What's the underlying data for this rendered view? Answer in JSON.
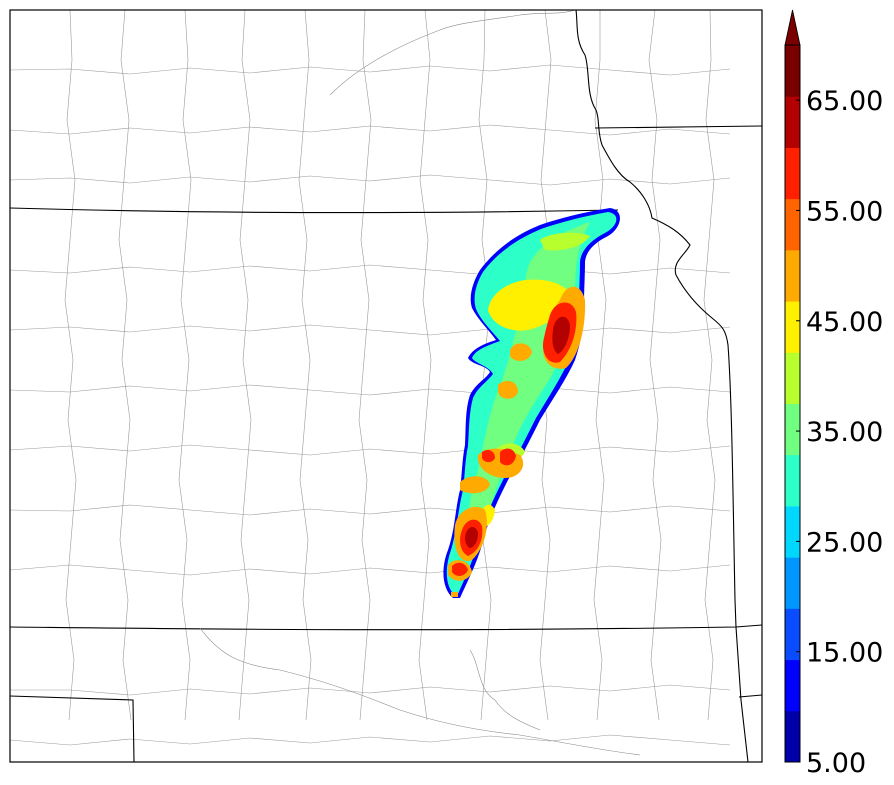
{
  "colorbar": {
    "min_label": "5.00",
    "labels": [
      "15.00",
      "25.00",
      "35.00",
      "45.00",
      "55.00",
      "65.00"
    ],
    "levels": [
      5,
      10,
      15,
      20,
      25,
      30,
      35,
      40,
      45,
      50,
      55,
      60,
      65,
      70
    ],
    "extend": "max",
    "colors": [
      "#0000aa",
      "#0000ff",
      "#0a4cff",
      "#0096ff",
      "#00d7ff",
      "#2cffc8",
      "#70ff80",
      "#b8ff2e",
      "#fff000",
      "#ffaa00",
      "#ff6400",
      "#ff2000",
      "#b30000",
      "#7a0000"
    ]
  },
  "map": {
    "features": "state and county boundaries",
    "field_colors": {
      "edge": "#0000ff",
      "low": "#2cffc8",
      "mid": "#70ff80",
      "high": "#fff000",
      "orange": "#ffaa00",
      "red": "#ff2000",
      "darkred": "#b30000"
    }
  }
}
